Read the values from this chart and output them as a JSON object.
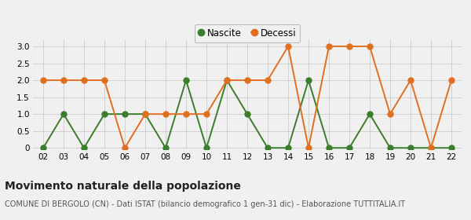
{
  "years": [
    "02",
    "03",
    "04",
    "05",
    "06",
    "07",
    "08",
    "09",
    "10",
    "11",
    "12",
    "13",
    "14",
    "15",
    "16",
    "17",
    "18",
    "19",
    "20",
    "21",
    "22"
  ],
  "nascite": [
    0,
    1,
    0,
    1,
    1,
    1,
    0,
    2,
    0,
    2,
    1,
    0,
    0,
    2,
    0,
    0,
    1,
    0,
    0,
    0,
    0
  ],
  "decessi": [
    2,
    2,
    2,
    2,
    0,
    1,
    1,
    1,
    1,
    2,
    2,
    2,
    3,
    0,
    3,
    3,
    3,
    1,
    2,
    0,
    2
  ],
  "nascite_color": "#3a7d2c",
  "decessi_color": "#e07020",
  "bg_color": "#f0f0f0",
  "grid_color": "#cccccc",
  "ylim_min": -0.05,
  "ylim_max": 3.2,
  "yticks": [
    0,
    0.5,
    1.0,
    1.5,
    2.0,
    2.5,
    3.0
  ],
  "ytick_labels": [
    "0",
    "0.5",
    "1.0",
    "1.5",
    "2.0",
    "2.5",
    "3.0"
  ],
  "title": "Movimento naturale della popolazione",
  "subtitle": "COMUNE DI BERGOLO (CN) - Dati ISTAT (bilancio demografico 1 gen-31 dic) - Elaborazione TUTTITALIA.IT",
  "legend_nascite": "Nascite",
  "legend_decessi": "Decessi",
  "title_fontsize": 10,
  "subtitle_fontsize": 7,
  "marker_size": 5,
  "line_width": 1.4
}
